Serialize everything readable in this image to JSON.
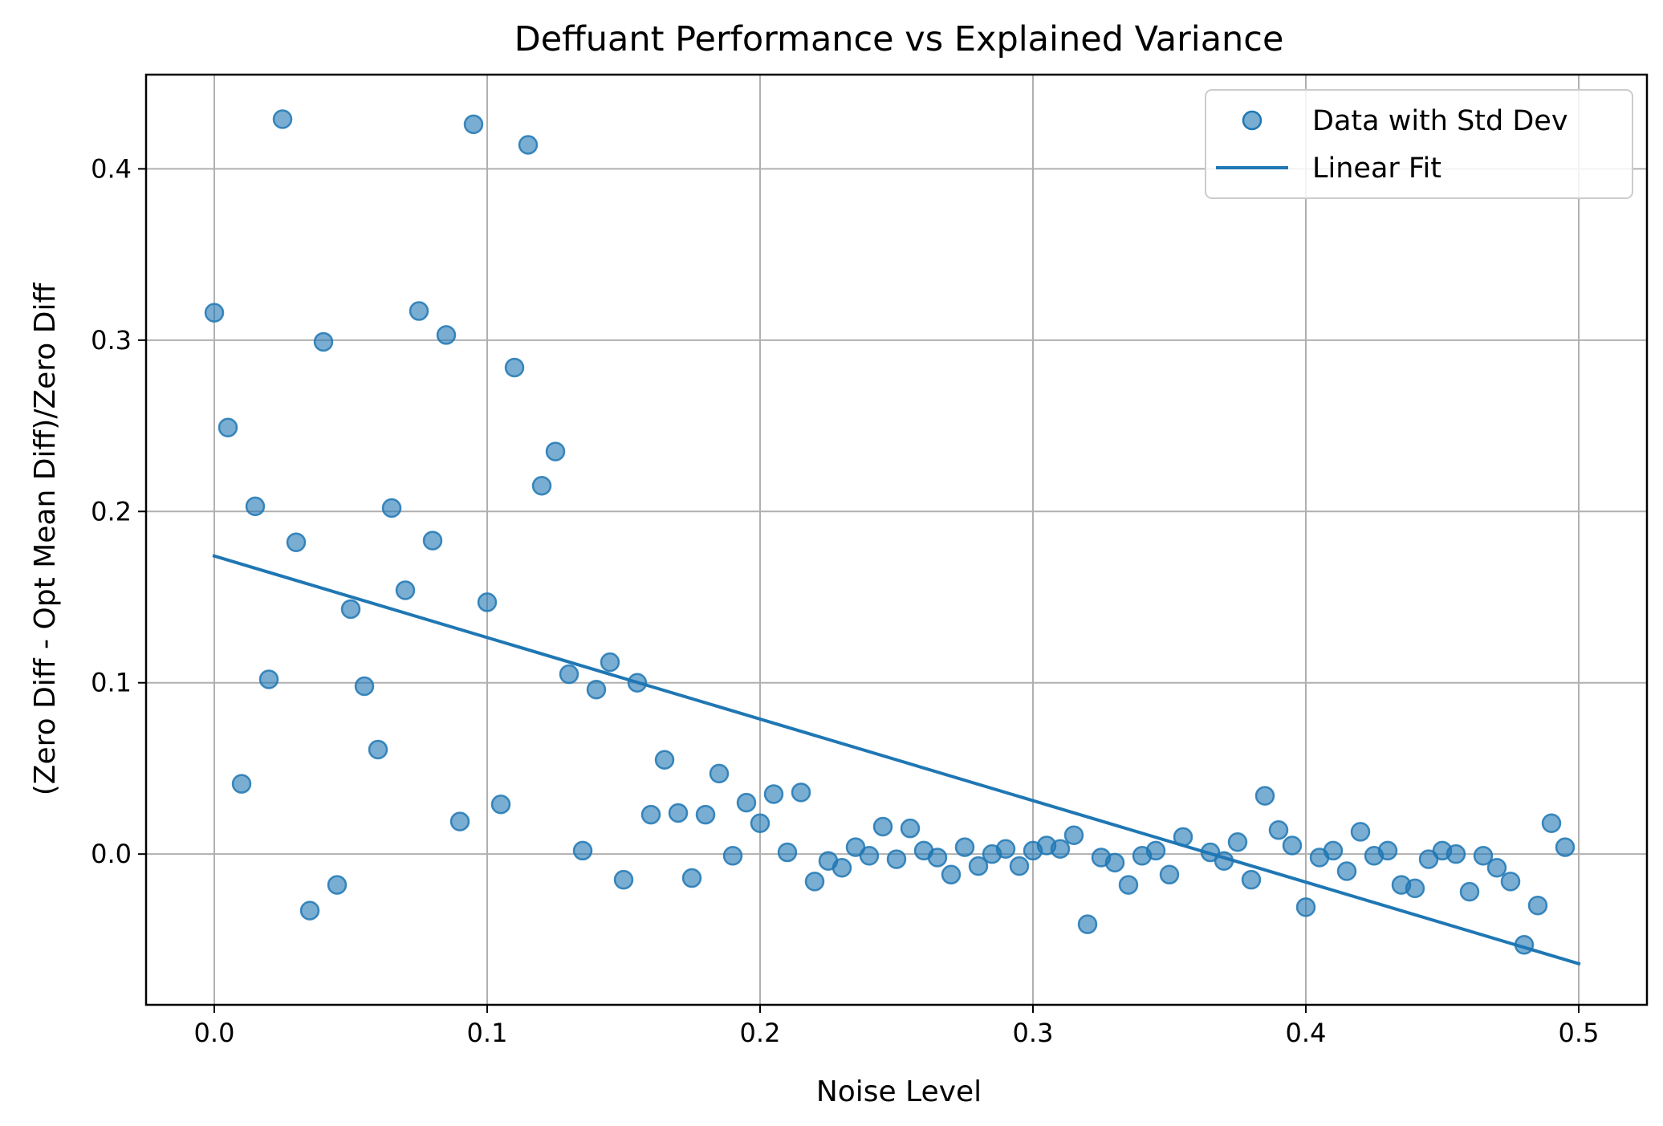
{
  "chart_data": {
    "type": "scatter",
    "title": "Deffuant Performance vs Explained Variance",
    "xlabel": "Noise Level",
    "ylabel": "(Zero Diff - Opt Mean Diff)/Zero Diff",
    "xlim": [
      -0.025,
      0.525
    ],
    "ylim": [
      -0.088,
      0.455
    ],
    "xticks": [
      0.0,
      0.1,
      0.2,
      0.3,
      0.4,
      0.5
    ],
    "xtick_labels": [
      "0.0",
      "0.1",
      "0.2",
      "0.3",
      "0.4",
      "0.5"
    ],
    "yticks": [
      0.0,
      0.1,
      0.2,
      0.3,
      0.4
    ],
    "ytick_labels": [
      "0.0",
      "0.1",
      "0.2",
      "0.3",
      "0.4"
    ],
    "grid": true,
    "legend_position": "top-right",
    "colors": {
      "marker": "#1f77b4",
      "line": "#1f77b4",
      "grid": "#b0b0b0"
    },
    "series": [
      {
        "name": "Data with Std Dev",
        "kind": "scatter",
        "points": [
          [
            0.0,
            0.316
          ],
          [
            0.005,
            0.249
          ],
          [
            0.01,
            0.041
          ],
          [
            0.015,
            0.203
          ],
          [
            0.02,
            0.102
          ],
          [
            0.025,
            0.429
          ],
          [
            0.03,
            0.182
          ],
          [
            0.035,
            -0.033
          ],
          [
            0.04,
            0.299
          ],
          [
            0.045,
            -0.018
          ],
          [
            0.05,
            0.143
          ],
          [
            0.055,
            0.098
          ],
          [
            0.06,
            0.061
          ],
          [
            0.065,
            0.202
          ],
          [
            0.07,
            0.154
          ],
          [
            0.075,
            0.317
          ],
          [
            0.08,
            0.183
          ],
          [
            0.085,
            0.303
          ],
          [
            0.09,
            0.019
          ],
          [
            0.095,
            0.426
          ],
          [
            0.1,
            0.147
          ],
          [
            0.105,
            0.029
          ],
          [
            0.11,
            0.284
          ],
          [
            0.115,
            0.414
          ],
          [
            0.12,
            0.215
          ],
          [
            0.125,
            0.235
          ],
          [
            0.13,
            0.105
          ],
          [
            0.135,
            0.002
          ],
          [
            0.14,
            0.096
          ],
          [
            0.145,
            0.112
          ],
          [
            0.15,
            -0.015
          ],
          [
            0.155,
            0.1
          ],
          [
            0.16,
            0.023
          ],
          [
            0.165,
            0.055
          ],
          [
            0.17,
            0.024
          ],
          [
            0.175,
            -0.014
          ],
          [
            0.18,
            0.023
          ],
          [
            0.185,
            0.047
          ],
          [
            0.19,
            -0.001
          ],
          [
            0.195,
            0.03
          ],
          [
            0.2,
            0.018
          ],
          [
            0.205,
            0.035
          ],
          [
            0.21,
            0.001
          ],
          [
            0.215,
            0.036
          ],
          [
            0.22,
            -0.016
          ],
          [
            0.225,
            -0.004
          ],
          [
            0.23,
            -0.008
          ],
          [
            0.235,
            0.004
          ],
          [
            0.24,
            -0.001
          ],
          [
            0.245,
            0.016
          ],
          [
            0.25,
            -0.003
          ],
          [
            0.255,
            0.015
          ],
          [
            0.26,
            0.002
          ],
          [
            0.265,
            -0.002
          ],
          [
            0.27,
            -0.012
          ],
          [
            0.275,
            0.004
          ],
          [
            0.28,
            -0.007
          ],
          [
            0.285,
            0.0
          ],
          [
            0.29,
            0.003
          ],
          [
            0.295,
            -0.007
          ],
          [
            0.3,
            0.002
          ],
          [
            0.305,
            0.005
          ],
          [
            0.31,
            0.003
          ],
          [
            0.315,
            0.011
          ],
          [
            0.32,
            -0.041
          ],
          [
            0.325,
            -0.002
          ],
          [
            0.33,
            -0.005
          ],
          [
            0.335,
            -0.018
          ],
          [
            0.34,
            -0.001
          ],
          [
            0.345,
            0.002
          ],
          [
            0.35,
            -0.012
          ],
          [
            0.355,
            0.01
          ],
          [
            0.365,
            0.001
          ],
          [
            0.37,
            -0.004
          ],
          [
            0.375,
            0.007
          ],
          [
            0.38,
            -0.015
          ],
          [
            0.385,
            0.034
          ],
          [
            0.39,
            0.014
          ],
          [
            0.395,
            0.005
          ],
          [
            0.4,
            -0.031
          ],
          [
            0.405,
            -0.002
          ],
          [
            0.41,
            0.002
          ],
          [
            0.415,
            -0.01
          ],
          [
            0.42,
            0.013
          ],
          [
            0.425,
            -0.001
          ],
          [
            0.43,
            0.002
          ],
          [
            0.435,
            -0.018
          ],
          [
            0.44,
            -0.02
          ],
          [
            0.445,
            -0.003
          ],
          [
            0.45,
            0.002
          ],
          [
            0.455,
            0.0
          ],
          [
            0.46,
            -0.022
          ],
          [
            0.465,
            -0.001
          ],
          [
            0.47,
            -0.008
          ],
          [
            0.475,
            -0.016
          ],
          [
            0.48,
            -0.053
          ],
          [
            0.485,
            -0.03
          ],
          [
            0.49,
            0.018
          ],
          [
            0.495,
            0.004
          ]
        ]
      },
      {
        "name": "Linear Fit",
        "kind": "line",
        "points": [
          [
            0.0,
            0.174
          ],
          [
            0.5,
            -0.064
          ]
        ]
      }
    ]
  }
}
